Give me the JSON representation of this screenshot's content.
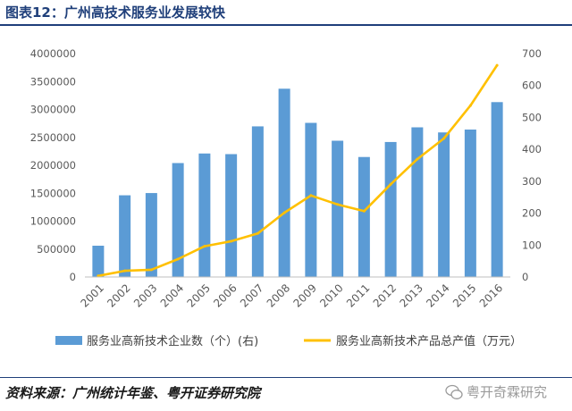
{
  "colors": {
    "title": "#1F3F7A",
    "rule": "#1F3F7A",
    "bar": "#5B9BD5",
    "line": "#FFC000",
    "axis_text": "#595959",
    "axis_line": "#BFBFBF",
    "watermark": "#9A9A9A"
  },
  "footer": {
    "source": "资料来源：广州统计年鉴、粤开证券研究院"
  },
  "watermark": {
    "icon": "wechat-icon",
    "text": "粤开奇霖研究"
  },
  "chart_data": {
    "type": "bar",
    "title": "图表12：广州高技术服务业发展较快",
    "xlabel": "",
    "ylabel": "",
    "categories": [
      "2001",
      "2002",
      "2003",
      "2004",
      "2005",
      "2006",
      "2007",
      "2008",
      "2009",
      "2010",
      "2011",
      "2012",
      "2013",
      "2014",
      "2015",
      "2016"
    ],
    "series": [
      {
        "name": "服务业高新技术企业数（个）(右)",
        "type": "bar",
        "axis": "right",
        "values": [
          98,
          256,
          263,
          357,
          387,
          385,
          472,
          590,
          483,
          427,
          376,
          423,
          469,
          453,
          462,
          548
        ]
      },
      {
        "name": "服务业高新技术产品总产值（万元）",
        "type": "line",
        "axis": "left",
        "values": [
          20000,
          110000,
          130000,
          320000,
          550000,
          640000,
          780000,
          1150000,
          1460000,
          1300000,
          1180000,
          1660000,
          2110000,
          2480000,
          3070000,
          3790000
        ]
      }
    ],
    "y_left": {
      "min": 0,
      "max": 4000000,
      "ticks": [
        0,
        500000,
        1000000,
        1500000,
        2000000,
        2500000,
        3000000,
        3500000,
        4000000
      ]
    },
    "y_right": {
      "min": 0,
      "max": 700,
      "ticks": [
        0,
        100,
        200,
        300,
        400,
        500,
        600,
        700
      ]
    },
    "grid": false,
    "legend": "bottom"
  }
}
